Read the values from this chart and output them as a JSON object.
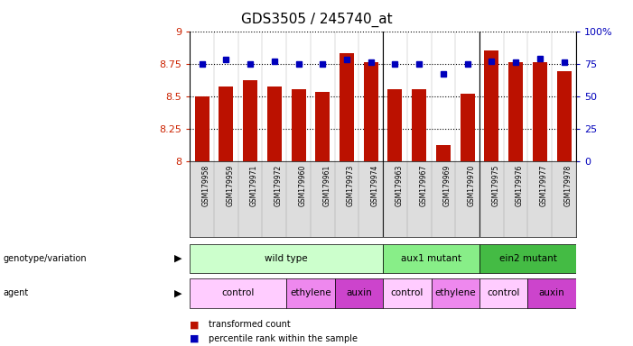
{
  "title": "GDS3505 / 245740_at",
  "samples": [
    "GSM179958",
    "GSM179959",
    "GSM179971",
    "GSM179972",
    "GSM179960",
    "GSM179961",
    "GSM179973",
    "GSM179974",
    "GSM179963",
    "GSM179967",
    "GSM179969",
    "GSM179970",
    "GSM179975",
    "GSM179976",
    "GSM179977",
    "GSM179978"
  ],
  "red_values": [
    8.5,
    8.57,
    8.62,
    8.57,
    8.55,
    8.53,
    8.83,
    8.76,
    8.55,
    8.55,
    8.12,
    8.52,
    8.85,
    8.76,
    8.76,
    8.69
  ],
  "blue_percentiles": [
    75,
    78,
    75,
    77,
    75,
    75,
    78,
    76,
    75,
    75,
    67,
    75,
    77,
    76,
    79,
    76
  ],
  "ylim_left": [
    8.0,
    9.0
  ],
  "ylim_right": [
    0,
    100
  ],
  "left_ticks": [
    8.0,
    8.25,
    8.5,
    8.75,
    9.0
  ],
  "left_tick_labels": [
    "8",
    "8.25",
    "8.5",
    "8.75",
    "9"
  ],
  "right_ticks": [
    0,
    25,
    50,
    75,
    100
  ],
  "right_tick_labels": [
    "0",
    "25",
    "50",
    "75",
    "100%"
  ],
  "genotype_groups": [
    {
      "label": "wild type",
      "start": 0,
      "end": 7,
      "color": "#ccffcc"
    },
    {
      "label": "aux1 mutant",
      "start": 8,
      "end": 11,
      "color": "#88ee88"
    },
    {
      "label": "ein2 mutant",
      "start": 12,
      "end": 15,
      "color": "#44bb44"
    }
  ],
  "agent_groups": [
    {
      "label": "control",
      "start": 0,
      "end": 3,
      "color": "#ffccff"
    },
    {
      "label": "ethylene",
      "start": 4,
      "end": 5,
      "color": "#ee88ee"
    },
    {
      "label": "auxin",
      "start": 6,
      "end": 7,
      "color": "#cc44cc"
    },
    {
      "label": "control",
      "start": 8,
      "end": 9,
      "color": "#ffccff"
    },
    {
      "label": "ethylene",
      "start": 10,
      "end": 11,
      "color": "#ee88ee"
    },
    {
      "label": "control",
      "start": 12,
      "end": 13,
      "color": "#ffccff"
    },
    {
      "label": "auxin",
      "start": 14,
      "end": 15,
      "color": "#cc44cc"
    }
  ],
  "bar_color": "#bb1100",
  "dot_color": "#0000bb",
  "baseline": 8.0,
  "axis_color_left": "#cc2200",
  "axis_color_right": "#0000bb",
  "group_boundaries": [
    7.5,
    11.5
  ],
  "xtick_bg_color": "#dddddd",
  "label_text_genotype": "genotype/variation",
  "label_text_agent": "agent",
  "legend_red_label": "transformed count",
  "legend_blue_label": "percentile rank within the sample"
}
